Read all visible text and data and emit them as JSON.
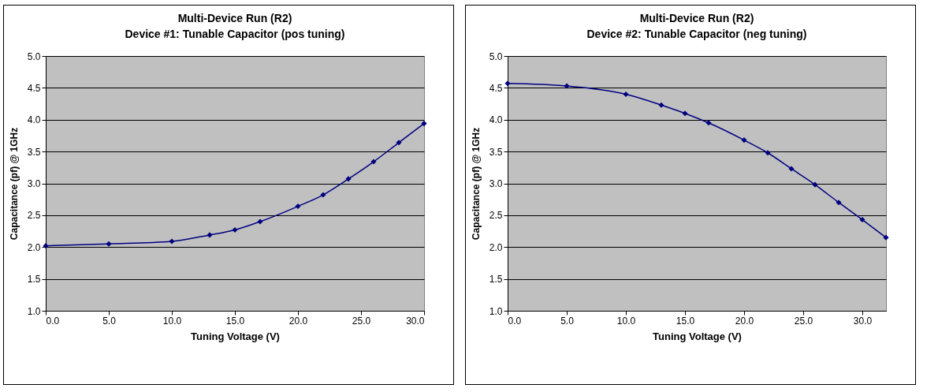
{
  "chart_data": [
    {
      "type": "line",
      "title": "Multi-Device Run (R2)",
      "subtitle": "Device #1: Tunable Capacitor (pos tuning)",
      "xlabel": "Tuning Voltage (V)",
      "ylabel": "Capacitance (pf) @ 1GHz",
      "x": [
        0,
        5,
        10,
        13,
        15,
        17,
        20,
        22,
        24,
        26,
        28,
        30
      ],
      "series": [
        {
          "color": "#000080",
          "values": [
            2.02,
            2.05,
            2.09,
            2.19,
            2.27,
            2.4,
            2.64,
            2.82,
            3.07,
            3.34,
            3.64,
            3.94
          ]
        }
      ],
      "xlim": [
        0,
        30
      ],
      "xticks": [
        {
          "value": 0,
          "label": "0.0"
        },
        {
          "value": 5,
          "label": "5.0"
        },
        {
          "value": 10,
          "label": "10.0"
        },
        {
          "value": 15,
          "label": "15.0"
        },
        {
          "value": 20,
          "label": "20.0"
        },
        {
          "value": 25,
          "label": "25.0"
        },
        {
          "value": 30,
          "label": "30.0"
        }
      ],
      "ylim": [
        1,
        5
      ],
      "yticks": [
        {
          "value": 1,
          "label": "1.0"
        },
        {
          "value": 1.5,
          "label": "1.5"
        },
        {
          "value": 2,
          "label": "2.0"
        },
        {
          "value": 2.5,
          "label": "2.5"
        },
        {
          "value": 3,
          "label": "3.0"
        },
        {
          "value": 3.5,
          "label": "3.5"
        },
        {
          "value": 4,
          "label": "4.0"
        },
        {
          "value": 4.5,
          "label": "4.5"
        },
        {
          "value": 5,
          "label": "5.0"
        }
      ],
      "grid": "y",
      "marker": "diamond",
      "line_style": "solid"
    },
    {
      "type": "line",
      "title": "Multi-Device Run (R2)",
      "subtitle": "Device #2: Tunable Capacitor (neg tuning)",
      "xlabel": "Tuning Voltage (V)",
      "ylabel": "Capacitance (pf) @ 1GHz",
      "x": [
        0,
        5,
        10,
        13,
        15,
        17,
        20,
        22,
        24,
        26,
        28,
        30,
        32
      ],
      "series": [
        {
          "color": "#000080",
          "values": [
            4.57,
            4.53,
            4.4,
            4.23,
            4.1,
            3.95,
            3.68,
            3.48,
            3.23,
            2.98,
            2.7,
            2.43,
            2.15
          ]
        }
      ],
      "xlim": [
        0,
        32
      ],
      "xticks": [
        {
          "value": 0,
          "label": "0.0"
        },
        {
          "value": 5,
          "label": "5.0"
        },
        {
          "value": 10,
          "label": "10.0"
        },
        {
          "value": 15,
          "label": "15.0"
        },
        {
          "value": 20,
          "label": "20.0"
        },
        {
          "value": 25,
          "label": "25.0"
        },
        {
          "value": 30,
          "label": "30.0"
        }
      ],
      "ylim": [
        1,
        5
      ],
      "yticks": [
        {
          "value": 1,
          "label": "1.0"
        },
        {
          "value": 1.5,
          "label": "1.5"
        },
        {
          "value": 2,
          "label": "2.0"
        },
        {
          "value": 2.5,
          "label": "2.5"
        },
        {
          "value": 3,
          "label": "3.0"
        },
        {
          "value": 3.5,
          "label": "3.5"
        },
        {
          "value": 4,
          "label": "4.0"
        },
        {
          "value": 4.5,
          "label": "4.5"
        },
        {
          "value": 5,
          "label": "5.0"
        }
      ],
      "grid": "y",
      "marker": "diamond",
      "line_style": "solid"
    }
  ]
}
